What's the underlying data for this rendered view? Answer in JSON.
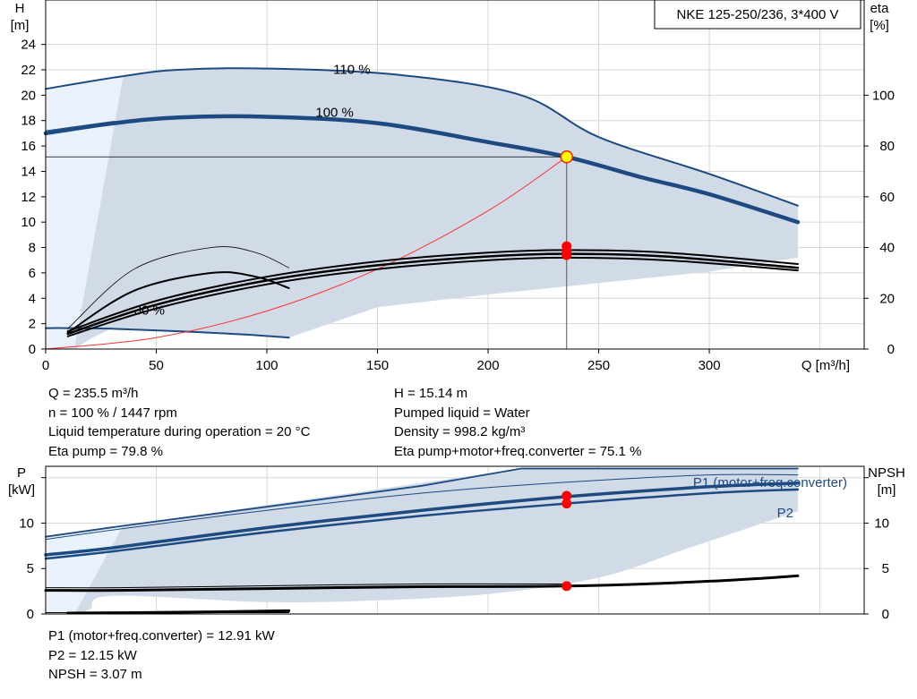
{
  "title": "NKE 125-250/236, 3*400 V",
  "chart_data": [
    {
      "type": "line",
      "title": "NKE 125-250/236, 3*400 V",
      "xlabel": "Q [m³/h]",
      "ylabel": "H\n[m]",
      "y2label": "eta\n[%]",
      "xlim": [
        0,
        370
      ],
      "ylim": [
        0,
        27.5
      ],
      "y2lim": [
        0,
        137.5
      ],
      "xticks": [
        0,
        50,
        100,
        150,
        200,
        250,
        300
      ],
      "yticks": [
        0,
        2,
        4,
        6,
        8,
        10,
        12,
        14,
        16,
        18,
        20,
        22,
        24
      ],
      "y2ticks": [
        0,
        20,
        40,
        60,
        80,
        100
      ],
      "grid": true,
      "annotations": [
        {
          "text": "110 %",
          "x": 130,
          "y": 21.7
        },
        {
          "text": "100 %",
          "x": 122,
          "y": 18.3
        },
        {
          "text": "30 %",
          "x": 40,
          "y": 2.7
        }
      ],
      "operating_range": {
        "upper": [
          [
            35,
            21.5
          ],
          [
            60,
            22
          ],
          [
            100,
            22.1
          ],
          [
            160,
            21.6
          ],
          [
            215,
            20
          ],
          [
            250,
            16.7
          ],
          [
            300,
            13.8
          ],
          [
            340,
            11.3
          ]
        ],
        "lower": [
          [
            340,
            7.2
          ],
          [
            300,
            6.1
          ],
          [
            250,
            5.2
          ],
          [
            200,
            4.3
          ],
          [
            150,
            3.3
          ],
          [
            110,
            0.9
          ],
          [
            30,
            1.65
          ],
          [
            20,
            0.8
          ],
          [
            13,
            0
          ]
        ]
      },
      "series": [
        {
          "role": "head_110",
          "color": "#1d4a80",
          "x": [
            0,
            35,
            60,
            100,
            160,
            215,
            250,
            300,
            340
          ],
          "y": [
            20.5,
            21.5,
            22.0,
            22.1,
            21.6,
            20.0,
            16.7,
            13.8,
            11.3
          ]
        },
        {
          "role": "head_100",
          "color": "#1d4a80",
          "x": [
            0,
            31,
            60,
            100,
            150,
            200,
            235.5,
            270,
            300,
            340
          ],
          "y": [
            17.0,
            17.8,
            18.25,
            18.3,
            17.8,
            16.3,
            15.14,
            13.5,
            12.2,
            10.0
          ]
        },
        {
          "role": "head_30",
          "color": "#1d4a80",
          "x": [
            0,
            10,
            30,
            60,
            90,
            110
          ],
          "y": [
            1.65,
            1.65,
            1.6,
            1.4,
            1.15,
            0.9
          ]
        },
        {
          "role": "system_curve",
          "color": "#ff3030",
          "x": [
            0,
            50,
            100,
            150,
            200,
            235.5
          ],
          "y": [
            0,
            0.9,
            3.0,
            6.3,
            10.9,
            15.14
          ]
        },
        {
          "role": "eta_100",
          "color": "#000000",
          "x": [
            10,
            50,
            100,
            150,
            200,
            235.5,
            280,
            340
          ],
          "y": [
            1.2,
            3.5,
            5.4,
            6.6,
            7.3,
            7.5,
            7.3,
            6.4
          ]
        },
        {
          "role": "eta_variants",
          "color": "#000000",
          "x": [
            10,
            50,
            100,
            150,
            200,
            235.5,
            280,
            340
          ],
          "y": [
            1.4,
            3.8,
            5.7,
            6.9,
            7.6,
            7.8,
            7.6,
            6.7
          ]
        },
        {
          "role": "eta_110",
          "color": "#000000",
          "x": [
            10,
            50,
            100,
            150,
            200,
            235.5,
            280,
            340
          ],
          "y": [
            1.0,
            3.2,
            5.1,
            6.3,
            7.0,
            7.2,
            7.0,
            6.2
          ]
        },
        {
          "role": "eta_low_speed",
          "color": "#000000",
          "x": [
            10,
            40,
            75,
            95,
            110
          ],
          "y": [
            1.3,
            4.6,
            6.0,
            5.7,
            4.8
          ]
        },
        {
          "role": "eta_low_speed_thin",
          "color": "#000000",
          "x": [
            10,
            40,
            75,
            95,
            110
          ],
          "y": [
            1.6,
            6.3,
            8.0,
            7.6,
            6.4
          ]
        }
      ],
      "markers": [
        {
          "x": 235.5,
          "y": 15.14,
          "style": "duty"
        },
        {
          "x": 235.5,
          "y": 8.1,
          "style": "eta"
        },
        {
          "x": 235.5,
          "y": 7.7,
          "style": "eta"
        },
        {
          "x": 235.5,
          "y": 7.4,
          "style": "eta"
        }
      ]
    },
    {
      "type": "line",
      "xlim": [
        0,
        370
      ],
      "ylim": [
        0,
        16.25
      ],
      "y2lim": [
        0,
        16.25
      ],
      "ylabel": "P\n[kW]",
      "y2label": "NPSH\n[m]",
      "yticks": [
        0,
        5,
        10
      ],
      "y2ticks": [
        0,
        5,
        10
      ],
      "grid": true,
      "labels": {
        "p1": "P1 (motor+freq.converter)",
        "p2": "P2"
      },
      "power_range": {
        "upper": [
          [
            35,
            9.7
          ],
          [
            215,
            16.0
          ],
          [
            340,
            16.0
          ]
        ],
        "lower": [
          [
            340,
            11.3
          ],
          [
            290,
            7.2
          ],
          [
            250,
            4.0
          ],
          [
            200,
            2.2
          ],
          [
            150,
            1.5
          ],
          [
            100,
            1.3
          ],
          [
            30,
            2.0
          ],
          [
            20,
            0.5
          ],
          [
            13,
            0
          ]
        ]
      },
      "series": [
        {
          "role": "p1_thin_a",
          "color": "#1d4a80",
          "x": [
            0,
            35,
            100,
            170,
            215,
            340
          ],
          "y": [
            8.5,
            9.7,
            11.8,
            14.1,
            16.0,
            16.0
          ]
        },
        {
          "role": "p1_thin_b",
          "color": "#1d4a80",
          "x": [
            0,
            35,
            100,
            170,
            235.5,
            300,
            340
          ],
          "y": [
            8.2,
            9.4,
            11.4,
            13.3,
            14.5,
            15.3,
            15.3
          ]
        },
        {
          "role": "p1",
          "color": "#1d4a80",
          "x": [
            0,
            31,
            100,
            170,
            235.5,
            300,
            340
          ],
          "y": [
            6.5,
            7.3,
            9.5,
            11.4,
            12.91,
            14.0,
            14.4
          ]
        },
        {
          "role": "p2",
          "color": "#1d4a80",
          "x": [
            0,
            31,
            100,
            170,
            235.5,
            300,
            340
          ],
          "y": [
            6.1,
            6.9,
            9.0,
            10.8,
            12.15,
            13.3,
            13.7
          ]
        },
        {
          "role": "npsh",
          "color": "#000000",
          "x": [
            0,
            33,
            100,
            170,
            235.5,
            300,
            340
          ],
          "y": [
            2.6,
            2.6,
            2.8,
            3.0,
            3.07,
            3.6,
            4.2
          ]
        },
        {
          "role": "npsh_thin",
          "color": "#000000",
          "x": [
            0,
            33,
            100,
            170,
            235.5
          ],
          "y": [
            2.9,
            2.9,
            3.1,
            3.3,
            3.3
          ]
        },
        {
          "role": "npsh_30",
          "color": "#000000",
          "x": [
            10,
            40,
            80,
            110
          ],
          "y": [
            0.1,
            0.15,
            0.25,
            0.35
          ]
        },
        {
          "role": "npsh_30_thin",
          "color": "#000000",
          "x": [
            0,
            40,
            110
          ],
          "y": [
            0.15,
            0.15,
            0.15
          ]
        }
      ],
      "markers": [
        {
          "x": 235.5,
          "y": 13.0,
          "style": "eta"
        },
        {
          "x": 235.5,
          "y": 12.15,
          "style": "eta"
        },
        {
          "x": 235.5,
          "y": 3.07,
          "style": "eta"
        }
      ]
    }
  ],
  "duty_point": {
    "left": [
      "Q = 235.5 m³/h",
      "n = 100 % / 1447 rpm",
      "Liquid temperature during operation = 20 °C",
      "Eta pump = 79.8 %"
    ],
    "right": [
      "H = 15.14 m",
      "Pumped liquid = Water",
      "Density = 998.2 kg/m³",
      "Eta pump+motor+freq.converter = 75.1 %"
    ]
  },
  "power_results": [
    "P1 (motor+freq.converter) = 12.91 kW",
    "P2 = 12.15 kW",
    "NPSH = 3.07 m"
  ],
  "colors": {
    "range_fill": "#d0dbe7",
    "light_fill": "#e9f2fb",
    "curve": "#1d4a80",
    "grid": "#d8d8d8",
    "system": "#ff3030",
    "marker": "#ff0000",
    "duty_marker": "#ffff00"
  }
}
